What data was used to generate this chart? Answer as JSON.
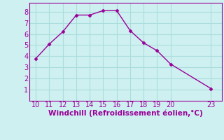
{
  "x": [
    10,
    11,
    12,
    13,
    14,
    15,
    16,
    17,
    18,
    19,
    20,
    23
  ],
  "y": [
    3.8,
    5.1,
    6.2,
    7.7,
    7.7,
    8.1,
    8.1,
    6.3,
    5.2,
    4.5,
    3.3,
    1.1
  ],
  "line_color": "#990099",
  "marker": "D",
  "marker_size": 2.5,
  "bg_color": "#cff0f0",
  "grid_color": "#aadddd",
  "xlabel": "Windchill (Refroidissement éolien,°C)",
  "xlabel_color": "#990099",
  "tick_color": "#990099",
  "spine_color": "#990099",
  "xlim": [
    9.5,
    23.8
  ],
  "ylim": [
    0.0,
    8.8
  ],
  "xticks": [
    10,
    11,
    12,
    13,
    14,
    15,
    16,
    17,
    18,
    19,
    20,
    23
  ],
  "yticks": [
    1,
    2,
    3,
    4,
    5,
    6,
    7,
    8
  ],
  "figsize": [
    3.2,
    2.0
  ],
  "dpi": 100,
  "tick_fontsize": 7,
  "xlabel_fontsize": 7.5
}
